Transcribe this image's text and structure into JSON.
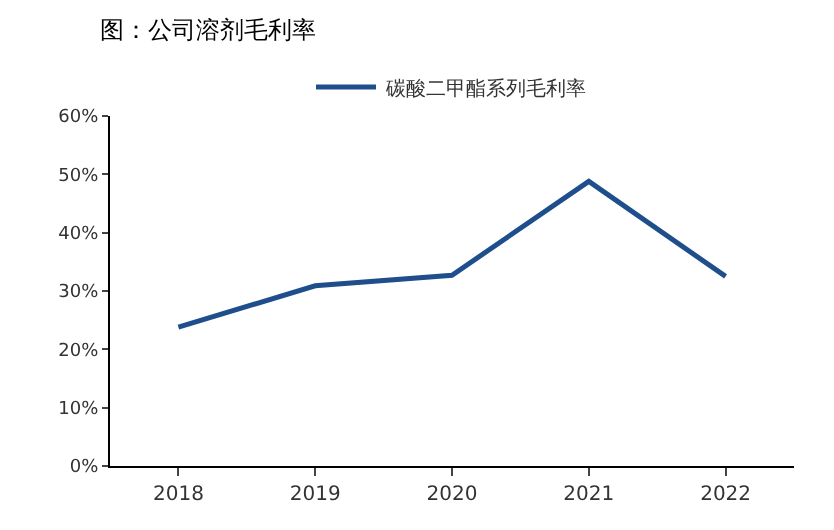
{
  "chart_data": {
    "type": "line",
    "title": "图：公司溶剂毛利率",
    "categories": [
      "2018",
      "2019",
      "2020",
      "2021",
      "2022"
    ],
    "series": [
      {
        "name": "碳酸二甲酯系列毛利率",
        "color": "#1f4e8c",
        "values": [
          23.8,
          30.9,
          32.7,
          48.8,
          32.5
        ]
      }
    ],
    "ylim": [
      0,
      60
    ],
    "yticks": [
      {
        "value": 0,
        "label": "0%"
      },
      {
        "value": 10,
        "label": "10%"
      },
      {
        "value": 20,
        "label": "20%"
      },
      {
        "value": 30,
        "label": "30%"
      },
      {
        "value": 40,
        "label": "40%"
      },
      {
        "value": 50,
        "label": "50%"
      },
      {
        "value": 60,
        "label": "60%"
      }
    ],
    "legend": "top",
    "marker": "none",
    "line_style": "solid"
  }
}
